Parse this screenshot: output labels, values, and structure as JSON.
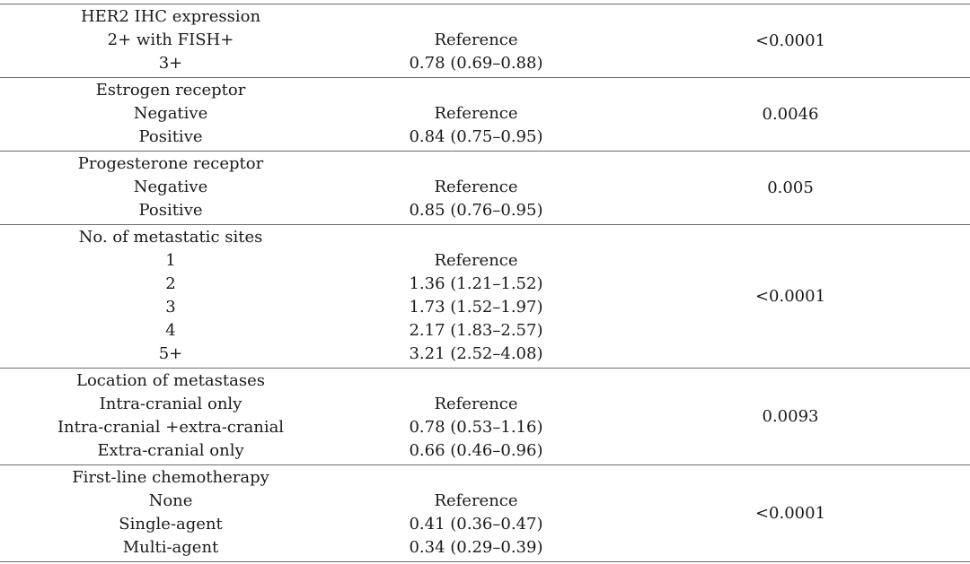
{
  "colors": {
    "text": "#1a1a1a",
    "rule_gray": "#6f6f6f",
    "background": "#ffffff"
  },
  "table": {
    "sections": [
      {
        "header": "HER2 IHC expression",
        "rows": [
          {
            "label": "2+ with FISH+",
            "value": "Reference"
          },
          {
            "label": "3+",
            "value": "0.78 (0.69–0.88)"
          }
        ],
        "p_value": "<0.0001"
      },
      {
        "header": "Estrogen receptor",
        "rows": [
          {
            "label": "Negative",
            "value": "Reference"
          },
          {
            "label": "Positive",
            "value": "0.84 (0.75–0.95)"
          }
        ],
        "p_value": "0.0046"
      },
      {
        "header": "Progesterone receptor",
        "rows": [
          {
            "label": "Negative",
            "value": "Reference"
          },
          {
            "label": "Positive",
            "value": "0.85 (0.76–0.95)"
          }
        ],
        "p_value": "0.005"
      },
      {
        "header": "No. of metastatic sites",
        "rows": [
          {
            "label": "1",
            "value": "Reference"
          },
          {
            "label": "2",
            "value": "1.36 (1.21–1.52)"
          },
          {
            "label": "3",
            "value": "1.73 (1.52–1.97)"
          },
          {
            "label": "4",
            "value": "2.17 (1.83–2.57)"
          },
          {
            "label": "5+",
            "value": "3.21 (2.52–4.08)"
          }
        ],
        "p_value": "<0.0001"
      },
      {
        "header": "Location of metastases",
        "rows": [
          {
            "label": "Intra-cranial only",
            "value": "Reference"
          },
          {
            "label": "Intra-cranial +extra-cranial",
            "value": "0.78 (0.53–1.16)"
          },
          {
            "label": "Extra-cranial only",
            "value": "0.66 (0.46–0.96)"
          }
        ],
        "p_value": "0.0093"
      },
      {
        "header": "First-line chemotherapy",
        "rows": [
          {
            "label": "None",
            "value": "Reference"
          },
          {
            "label": "Single-agent",
            "value": "0.41 (0.36–0.47)"
          },
          {
            "label": "Multi-agent",
            "value": "0.34 (0.29–0.39)"
          }
        ],
        "p_value": "<0.0001"
      }
    ]
  }
}
